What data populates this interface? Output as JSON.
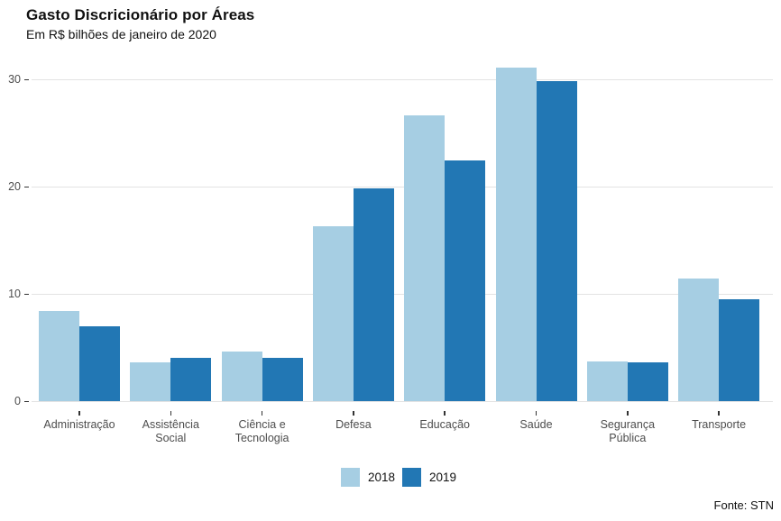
{
  "header": {
    "title": "Gasto Discricionário por Áreas",
    "subtitle": "Em R$ bilhões de janeiro de 2020"
  },
  "footer": {
    "source": "Fonte: STN"
  },
  "chart_data": {
    "type": "bar",
    "title": "Gasto Discricionário por Áreas",
    "subtitle": "Em R$ bilhões de janeiro de 2020",
    "xlabel": "",
    "ylabel": "",
    "categories": [
      "Administração",
      "Assistência Social",
      "Ciência e Tecnologia",
      "Defesa",
      "Educação",
      "Saúde",
      "Segurança Pública",
      "Transporte"
    ],
    "category_label_lines": [
      [
        "Administração"
      ],
      [
        "Assistência",
        "Social"
      ],
      [
        "Ciência e",
        "Tecnologia"
      ],
      [
        "Defesa"
      ],
      [
        "Educação"
      ],
      [
        "Saúde"
      ],
      [
        "Segurança",
        "Pública"
      ],
      [
        "Transporte"
      ]
    ],
    "series": [
      {
        "name": "2018",
        "color": "#A6CEE3",
        "values": [
          8.4,
          3.6,
          4.6,
          16.3,
          26.6,
          31.1,
          3.7,
          11.4
        ]
      },
      {
        "name": "2019",
        "color": "#2277B4",
        "values": [
          7.0,
          4.0,
          4.0,
          19.8,
          22.4,
          29.8,
          3.6,
          9.5
        ]
      }
    ],
    "ylim": [
      0,
      32.5
    ],
    "yticks": [
      0,
      10,
      20,
      30
    ],
    "grid": "horizontal-major-only",
    "grid_color": "#e3e3e3",
    "legend_position": "bottom-center",
    "source": "Fonte: STN"
  }
}
